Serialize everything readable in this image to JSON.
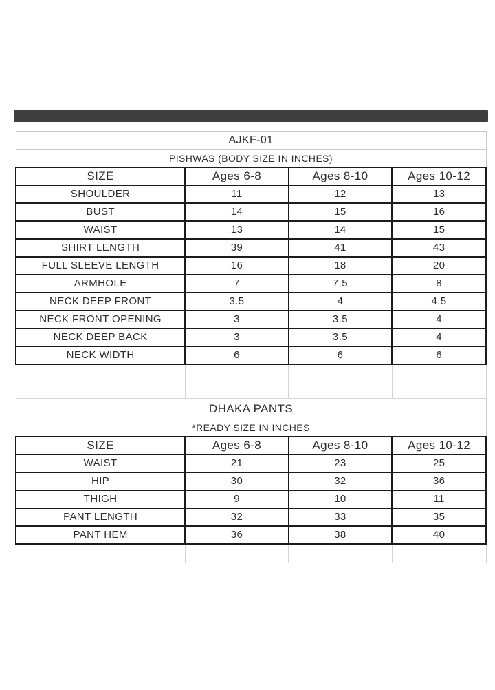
{
  "page": {
    "background": "#ffffff",
    "top_bar_color": "#3f3f3f",
    "border_dark": "#1c1c1c",
    "border_light": "#c8c8c8",
    "text_color": "#2e2e2e"
  },
  "tables": {
    "pishwas": {
      "title": "AJKF-01",
      "subtitle": "PISHWAS (BODY SIZE IN INCHES)",
      "columns": [
        "SIZE",
        "Ages 6-8",
        "Ages 8-10",
        "Ages 10-12"
      ],
      "rows": [
        {
          "label": "SHOULDER",
          "values": [
            "11",
            "12",
            "13"
          ]
        },
        {
          "label": "BUST",
          "values": [
            "14",
            "15",
            "16"
          ]
        },
        {
          "label": "WAIST",
          "values": [
            "13",
            "14",
            "15"
          ]
        },
        {
          "label": "SHIRT LENGTH",
          "values": [
            "39",
            "41",
            "43"
          ]
        },
        {
          "label": "FULL SLEEVE LENGTH",
          "values": [
            "16",
            "18",
            "20"
          ]
        },
        {
          "label": "ARMHOLE",
          "values": [
            "7",
            "7.5",
            "8"
          ]
        },
        {
          "label": "NECK DEEP FRONT",
          "values": [
            "3.5",
            "4",
            "4.5"
          ]
        },
        {
          "label": "NECK FRONT OPENING",
          "values": [
            "3",
            "3.5",
            "4"
          ]
        },
        {
          "label": "NECK DEEP BACK",
          "values": [
            "3",
            "3.5",
            "4"
          ]
        },
        {
          "label": "NECK WIDTH",
          "values": [
            "6",
            "6",
            "6"
          ]
        }
      ]
    },
    "dhaka": {
      "title": "DHAKA PANTS",
      "subtitle": "*READY SIZE IN INCHES",
      "columns": [
        "SIZE",
        "Ages 6-8",
        "Ages 8-10",
        "Ages 10-12"
      ],
      "rows": [
        {
          "label": "WAIST",
          "values": [
            "21",
            "23",
            "25"
          ]
        },
        {
          "label": "HIP",
          "values": [
            "30",
            "32",
            "36"
          ]
        },
        {
          "label": "THIGH",
          "values": [
            "9",
            "10",
            "11"
          ]
        },
        {
          "label": "PANT LENGTH",
          "values": [
            "32",
            "33",
            "35"
          ]
        },
        {
          "label": "PANT HEM",
          "values": [
            "36",
            "38",
            "40"
          ]
        }
      ]
    }
  }
}
